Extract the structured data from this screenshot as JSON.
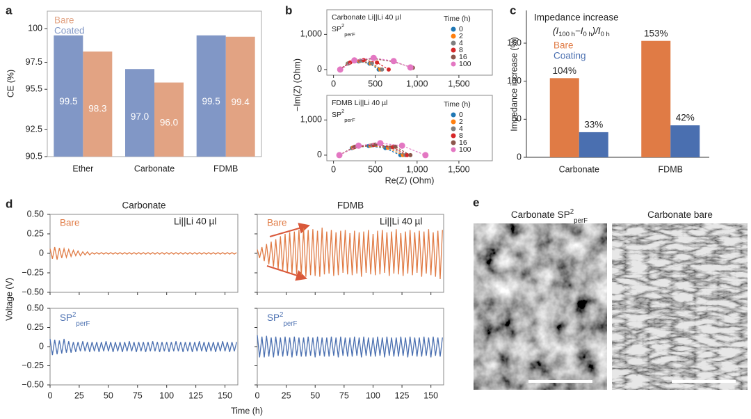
{
  "chart_data": [
    {
      "type": "bar",
      "label": "a",
      "ylabel": "CE (%)",
      "categories": [
        "Ether",
        "Carbonate",
        "FDMB"
      ],
      "series": [
        {
          "name": "Bare",
          "color": "#e2a383",
          "values": [
            98.3,
            96.0,
            99.4
          ],
          "value_labels": [
            "98.3",
            "96.0",
            "99.4"
          ]
        },
        {
          "name": "Coated",
          "color": "#8197c6",
          "values": [
            99.5,
            97.0,
            99.5
          ],
          "value_labels": [
            "99.5",
            "97.0",
            "99.5"
          ]
        }
      ],
      "ylim": [
        90.5,
        101.3
      ],
      "yticks": [
        90.5,
        92.5,
        95.5,
        97.5,
        100
      ]
    },
    {
      "type": "scatter",
      "label": "b",
      "title": "Carbonate Li||Li 40 µl",
      "subtitle": {
        "base": "SP",
        "sup": "2",
        "sub": "perF"
      },
      "ylabel": "−Im(Z) (Ohm)",
      "legend_title": "Time (h)",
      "xlim": [
        -80,
        1900
      ],
      "ylim": [
        -160,
        1700
      ],
      "xticks": [
        0,
        500,
        {
          "value": 1000,
          "label": "1,000"
        },
        {
          "value": 1500,
          "label": "1,500"
        }
      ],
      "yticks": [
        0,
        {
          "value": 1000,
          "label": "1,000"
        }
      ],
      "series": [
        {
          "name": "0",
          "color": "#1f77b4",
          "x": [
            70,
            170,
            300,
            430,
            540
          ],
          "values": [
            0,
            170,
            230,
            170,
            0
          ]
        },
        {
          "name": "2",
          "color": "#ff7f0e",
          "x": [
            70,
            175,
            310,
            445,
            560
          ],
          "values": [
            0,
            175,
            240,
            175,
            0
          ]
        },
        {
          "name": "4",
          "color": "#7f7f7f",
          "x": [
            70,
            180,
            320,
            460,
            580
          ],
          "values": [
            0,
            180,
            250,
            180,
            0
          ]
        },
        {
          "name": "8",
          "color": "#d62728",
          "x": [
            70,
            200,
            360,
            520,
            660
          ],
          "values": [
            0,
            200,
            270,
            200,
            0
          ]
        },
        {
          "name": "16",
          "color": "#8c564b",
          "x": [
            80,
            250,
            480,
            720,
            950
          ],
          "values": [
            0,
            250,
            310,
            220,
            50
          ]
        },
        {
          "name": "100",
          "color": "#e377c2",
          "x": [
            80,
            250,
            480,
            720,
            920
          ],
          "values": [
            0,
            260,
            330,
            240,
            60
          ]
        }
      ]
    },
    {
      "type": "scatter",
      "title": "FDMB Li||Li 40 µl",
      "subtitle": {
        "base": "SP",
        "sup": "2",
        "sub": "perF"
      },
      "xlabel": "Re(Z) (Ohm)",
      "legend_title": "Time (h)",
      "xlim": [
        -80,
        1900
      ],
      "ylim": [
        -160,
        1700
      ],
      "xticks": [
        0,
        500,
        {
          "value": 1000,
          "label": "1,000"
        },
        {
          "value": 1500,
          "label": "1,500"
        }
      ],
      "yticks": [
        0,
        {
          "value": 1000,
          "label": "1,000"
        }
      ],
      "series": [
        {
          "name": "0",
          "color": "#1f77b4",
          "x": [
            70,
            220,
            420,
            620,
            800
          ],
          "values": [
            0,
            200,
            260,
            200,
            0
          ]
        },
        {
          "name": "2",
          "color": "#ff7f0e",
          "x": [
            70,
            230,
            440,
            650,
            830
          ],
          "values": [
            0,
            210,
            270,
            210,
            0
          ]
        },
        {
          "name": "4",
          "color": "#7f7f7f",
          "x": [
            70,
            240,
            460,
            680,
            860
          ],
          "values": [
            0,
            220,
            280,
            220,
            0
          ]
        },
        {
          "name": "8",
          "color": "#d62728",
          "x": [
            70,
            250,
            480,
            710,
            880
          ],
          "values": [
            0,
            230,
            290,
            230,
            0
          ]
        },
        {
          "name": "16",
          "color": "#8c564b",
          "x": [
            70,
            260,
            500,
            740,
            920
          ],
          "values": [
            0,
            240,
            300,
            240,
            0
          ]
        },
        {
          "name": "100",
          "color": "#e377c2",
          "x": [
            70,
            300,
            560,
            820,
            1100
          ],
          "values": [
            0,
            270,
            340,
            270,
            0
          ]
        }
      ]
    },
    {
      "type": "bar",
      "label": "c",
      "ylabel": "Impedance increase (%)",
      "annotation": "Impedance increase",
      "formula": [
        {
          "text": "(I"
        },
        {
          "sub": "100 h"
        },
        {
          "text": "−I"
        },
        {
          "sub": "0 h"
        },
        {
          "text": ")/I"
        },
        {
          "sub": "0 h"
        }
      ],
      "categories": [
        "Carbonate",
        "FDMB"
      ],
      "series": [
        {
          "name": "Bare",
          "color": "#e07b45",
          "values": [
            104,
            153
          ],
          "value_labels": [
            "104%",
            "153%"
          ]
        },
        {
          "name": "Coating",
          "color": "#4a6fb0",
          "values": [
            33,
            42
          ],
          "value_labels": [
            "33%",
            "42%"
          ]
        }
      ],
      "ylim": [
        0,
        193
      ],
      "yticks": [
        0,
        50,
        100,
        150
      ]
    },
    {
      "type": "line",
      "label": "d",
      "title": "Carbonate",
      "ylabel": "Voltage (V)",
      "annotation": "Li||Li 40 µl",
      "xlim": [
        0,
        161
      ],
      "ylim": [
        -0.5,
        0.5
      ],
      "yticks": [
        {
          "value": -0.5,
          "label": "−0.50"
        },
        {
          "value": -0.25,
          "label": "−0.25"
        },
        0,
        {
          "value": 0.25,
          "label": "0.25"
        },
        {
          "value": 0.5,
          "label": "0.50"
        }
      ],
      "x": [
        0,
        2,
        4,
        6,
        8,
        10,
        12,
        14,
        16,
        18,
        20,
        22,
        24,
        26,
        28,
        30,
        32,
        34,
        36,
        38,
        40,
        42,
        44,
        46,
        48,
        50,
        52,
        54,
        56,
        58,
        60,
        62,
        64,
        66,
        68,
        70,
        72,
        74,
        76,
        78,
        80,
        82,
        84,
        86,
        88,
        90,
        92,
        94,
        96,
        98,
        100,
        102,
        104,
        106,
        108,
        110,
        112,
        114,
        116,
        118,
        120,
        122,
        124,
        126,
        128,
        130,
        132,
        134,
        136,
        138,
        140,
        142,
        144,
        146,
        148,
        150,
        152,
        154,
        156,
        158,
        160
      ],
      "series": [
        {
          "name": "Bare",
          "color": "#e07b45",
          "values": [
            0.06,
            -0.07,
            0.08,
            -0.08,
            0.07,
            -0.06,
            0.06,
            -0.05,
            0.05,
            -0.04,
            0.04,
            -0.03,
            0.03,
            -0.03,
            0.02,
            -0.02,
            0.02,
            -0.02,
            0.01,
            -0.01,
            0.01,
            -0.01,
            0.01,
            -0.01,
            0.01,
            -0.01,
            0.01,
            -0.01,
            0.01,
            -0.01,
            0.01,
            -0.01,
            0.01,
            -0.01,
            0.01,
            -0.01,
            0.01,
            -0.01,
            0.01,
            -0.01,
            0.01,
            -0.01,
            0.01,
            -0.01,
            0.01,
            -0.01,
            0.01,
            -0.01,
            0.01,
            -0.01,
            0.01,
            -0.01,
            0.01,
            -0.01,
            0.01,
            -0.01,
            0.01,
            -0.01,
            0.01,
            -0.01,
            0.01,
            -0.01,
            0.01,
            -0.01,
            0.01,
            -0.01,
            0.01,
            -0.01,
            0.01,
            -0.01,
            0.01,
            -0.01,
            0.01,
            -0.01,
            0.01,
            -0.01,
            0.01,
            -0.01,
            0.01,
            -0.01,
            0.01
          ]
        }
      ]
    },
    {
      "type": "line",
      "title": "FDMB",
      "annotation": "Li||Li 40 µl",
      "xlim": [
        0,
        161
      ],
      "ylim": [
        -0.5,
        0.5
      ],
      "x": [
        0,
        2,
        4,
        6,
        8,
        10,
        12,
        14,
        16,
        18,
        20,
        22,
        24,
        26,
        28,
        30,
        32,
        34,
        36,
        38,
        40,
        42,
        44,
        46,
        48,
        50,
        52,
        54,
        56,
        58,
        60,
        62,
        64,
        66,
        68,
        70,
        72,
        74,
        76,
        78,
        80,
        82,
        84,
        86,
        88,
        90,
        92,
        94,
        96,
        98,
        100,
        102,
        104,
        106,
        108,
        110,
        112,
        114,
        116,
        118,
        120,
        122,
        124,
        126,
        128,
        130,
        132,
        134,
        136,
        138,
        140,
        142,
        144,
        146,
        148,
        150,
        152,
        154,
        156,
        158,
        160
      ],
      "series": [
        {
          "name": "Bare",
          "color": "#e07b45",
          "values": [
            0.05,
            -0.06,
            0.08,
            -0.1,
            0.12,
            -0.14,
            0.15,
            -0.17,
            0.18,
            -0.2,
            0.22,
            -0.22,
            0.25,
            -0.24,
            0.27,
            -0.26,
            0.28,
            -0.27,
            0.3,
            -0.28,
            0.32,
            -0.3,
            0.3,
            -0.28,
            0.31,
            -0.29,
            0.29,
            -0.3,
            0.33,
            -0.27,
            0.28,
            -0.26,
            0.3,
            -0.29,
            0.27,
            -0.28,
            0.29,
            -0.25,
            0.3,
            -0.27,
            0.26,
            -0.28,
            0.29,
            -0.26,
            0.27,
            -0.3,
            0.28,
            -0.25,
            0.3,
            -0.27,
            0.25,
            -0.28,
            0.29,
            -0.27,
            0.3,
            -0.25,
            0.27,
            -0.29,
            0.28,
            -0.26,
            0.31,
            -0.27,
            0.26,
            -0.29,
            0.28,
            -0.26,
            0.3,
            -0.28,
            0.27,
            -0.25,
            0.29,
            -0.3,
            0.28,
            -0.26,
            0.31,
            -0.28,
            0.27,
            -0.3,
            0.29,
            -0.33,
            0.3
          ]
        }
      ]
    },
    {
      "type": "line",
      "xlabel": "Time (h)",
      "xlim": [
        0,
        161
      ],
      "ylim": [
        -0.5,
        0.5
      ],
      "yticks": [
        {
          "value": -0.5,
          "label": "−0.50"
        },
        {
          "value": -0.25,
          "label": "−0.25"
        },
        0,
        {
          "value": 0.25,
          "label": "0.25"
        },
        {
          "value": 0.5,
          "label": "0.50"
        }
      ],
      "xticks": [
        0,
        25,
        50,
        75,
        100,
        125,
        150
      ],
      "x": [
        0,
        2,
        4,
        6,
        8,
        10,
        12,
        14,
        16,
        18,
        20,
        22,
        24,
        26,
        28,
        30,
        32,
        34,
        36,
        38,
        40,
        42,
        44,
        46,
        48,
        50,
        52,
        54,
        56,
        58,
        60,
        62,
        64,
        66,
        68,
        70,
        72,
        74,
        76,
        78,
        80,
        82,
        84,
        86,
        88,
        90,
        92,
        94,
        96,
        98,
        100,
        102,
        104,
        106,
        108,
        110,
        112,
        114,
        116,
        118,
        120,
        122,
        124,
        126,
        128,
        130,
        132,
        134,
        136,
        138,
        140,
        142,
        144,
        146,
        148,
        150,
        152,
        154,
        156,
        158,
        160
      ],
      "series": [
        {
          "name": {
            "base": "SP",
            "sup": "2",
            "sub": "perF"
          },
          "color": "#4a6fb0",
          "values": [
            0.1,
            -0.11,
            0.09,
            -0.1,
            0.08,
            -0.09,
            0.1,
            -0.08,
            0.07,
            -0.08,
            0.06,
            -0.07,
            0.06,
            -0.06,
            0.07,
            -0.06,
            0.06,
            -0.07,
            0.06,
            -0.06,
            0.06,
            -0.07,
            0.06,
            -0.06,
            0.07,
            -0.06,
            0.06,
            -0.07,
            0.06,
            -0.06,
            0.06,
            -0.07,
            0.06,
            -0.06,
            0.07,
            -0.06,
            0.06,
            -0.07,
            0.06,
            -0.06,
            0.06,
            -0.07,
            0.06,
            -0.06,
            0.07,
            -0.06,
            0.06,
            -0.07,
            0.06,
            -0.06,
            0.06,
            -0.07,
            0.06,
            -0.06,
            0.07,
            -0.06,
            0.06,
            -0.07,
            0.06,
            -0.06,
            0.06,
            -0.07,
            0.06,
            -0.06,
            0.07,
            -0.06,
            0.06,
            -0.07,
            0.06,
            -0.06,
            0.06,
            -0.07,
            0.06,
            -0.06,
            0.07,
            -0.06,
            0.06,
            -0.07,
            0.06,
            -0.06,
            0.06
          ]
        }
      ]
    },
    {
      "type": "line",
      "xlim": [
        0,
        161
      ],
      "ylim": [
        -0.5,
        0.5
      ],
      "xticks": [
        0,
        25,
        50,
        75,
        100,
        125,
        150
      ],
      "x": [
        0,
        2,
        4,
        6,
        8,
        10,
        12,
        14,
        16,
        18,
        20,
        22,
        24,
        26,
        28,
        30,
        32,
        34,
        36,
        38,
        40,
        42,
        44,
        46,
        48,
        50,
        52,
        54,
        56,
        58,
        60,
        62,
        64,
        66,
        68,
        70,
        72,
        74,
        76,
        78,
        80,
        82,
        84,
        86,
        88,
        90,
        92,
        94,
        96,
        98,
        100,
        102,
        104,
        106,
        108,
        110,
        112,
        114,
        116,
        118,
        120,
        122,
        124,
        126,
        128,
        130,
        132,
        134,
        136,
        138,
        140,
        142,
        144,
        146,
        148,
        150,
        152,
        154,
        156,
        158,
        160
      ],
      "series": [
        {
          "name": {
            "base": "SP",
            "sup": "2",
            "sub": "perF"
          },
          "color": "#4a6fb0",
          "values": [
            0.15,
            -0.14,
            0.13,
            -0.14,
            0.14,
            -0.13,
            0.12,
            -0.14,
            0.13,
            -0.12,
            0.12,
            -0.13,
            0.13,
            -0.12,
            0.12,
            -0.14,
            0.13,
            -0.12,
            0.12,
            -0.13,
            0.12,
            -0.13,
            0.13,
            -0.12,
            0.12,
            -0.14,
            0.13,
            -0.12,
            0.12,
            -0.13,
            0.12,
            -0.13,
            0.13,
            -0.12,
            0.12,
            -0.14,
            0.13,
            -0.12,
            0.12,
            -0.13,
            0.12,
            -0.13,
            0.13,
            -0.12,
            0.12,
            -0.14,
            0.13,
            -0.12,
            0.12,
            -0.13,
            0.12,
            -0.13,
            0.13,
            -0.12,
            0.12,
            -0.14,
            0.13,
            -0.12,
            0.12,
            -0.13,
            0.12,
            -0.13,
            0.13,
            -0.12,
            0.12,
            -0.14,
            0.13,
            -0.12,
            0.12,
            -0.13,
            0.12,
            -0.13,
            0.13,
            -0.12,
            0.12,
            -0.14,
            0.13,
            -0.12,
            0.12,
            -0.13,
            0.12
          ]
        }
      ]
    }
  ],
  "images": {
    "label": "e",
    "panels": [
      {
        "title": {
          "base": "Carbonate SP",
          "sup": "2",
          "sub": "perF"
        }
      },
      {
        "title": {
          "base": "Carbonate bare"
        }
      }
    ]
  }
}
